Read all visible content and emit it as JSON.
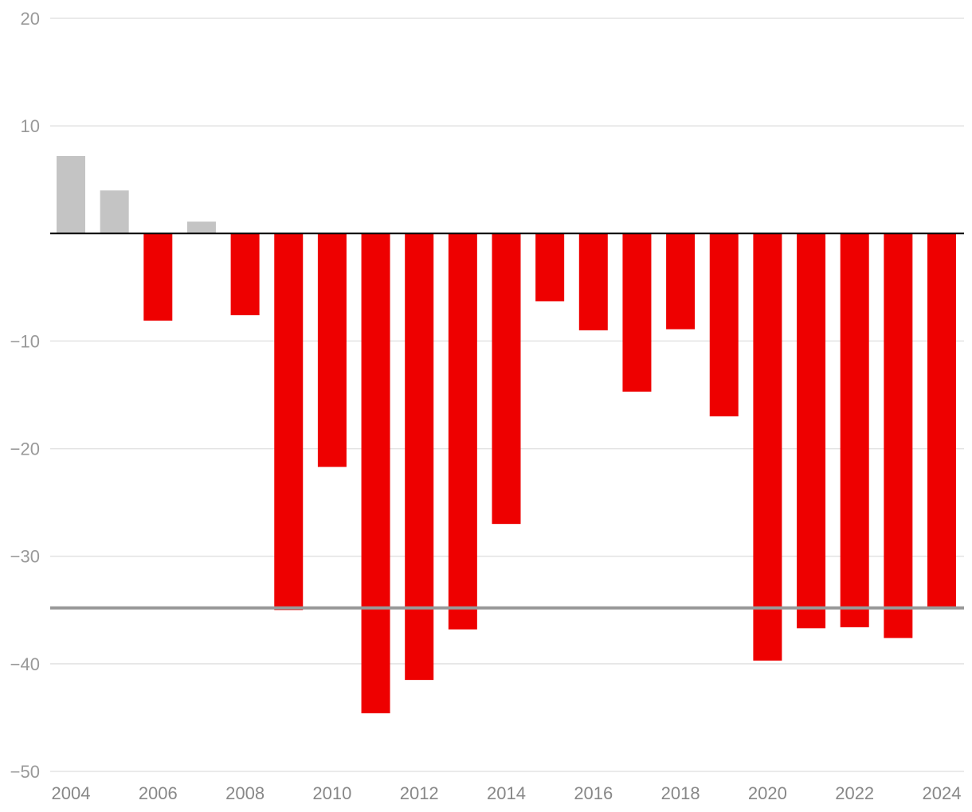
{
  "chart_data": {
    "type": "bar",
    "categories": [
      "2004",
      "2005",
      "2006",
      "2007",
      "2008",
      "2009",
      "2010",
      "2011",
      "2012",
      "2013",
      "2014",
      "2015",
      "2016",
      "2017",
      "2018",
      "2019",
      "2020",
      "2021",
      "2022",
      "2023",
      "2024"
    ],
    "values": [
      7.2,
      4.0,
      -8.1,
      1.1,
      -7.6,
      -35.0,
      -21.7,
      -44.6,
      -41.5,
      -36.8,
      -27.0,
      -6.3,
      -9.0,
      -14.7,
      -8.9,
      -17.0,
      -39.7,
      -36.7,
      -36.6,
      -37.6,
      -34.8
    ],
    "ylim": [
      -50,
      20
    ],
    "yticks": [
      20,
      10,
      -10,
      -20,
      -30,
      -40,
      -50
    ],
    "ytick_labels": [
      "20",
      "10",
      "−10",
      "−20",
      "−30",
      "−40",
      "−50"
    ],
    "xtick_labels": [
      "2004",
      "2006",
      "2008",
      "2010",
      "2012",
      "2014",
      "2016",
      "2018",
      "2020",
      "2022",
      "2024"
    ],
    "reference_line": -34.8,
    "grid": true,
    "colors": {
      "positive": "#c4c4c4",
      "negative": "#ee0000",
      "reference": "#999999",
      "zero_line": "#000000",
      "grid": "#e3e3e3"
    },
    "title": "",
    "xlabel": "",
    "ylabel": ""
  }
}
